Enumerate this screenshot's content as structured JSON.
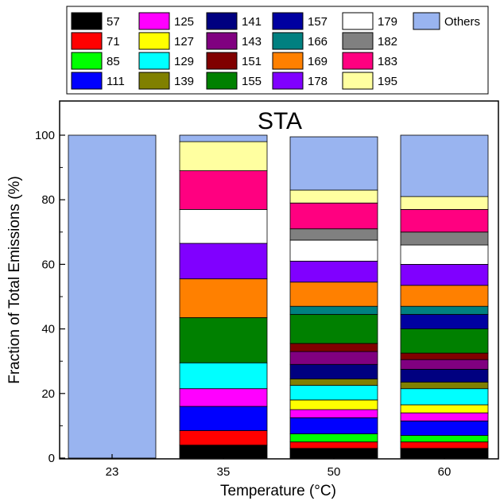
{
  "chart_data": {
    "type": "bar",
    "stacked": true,
    "title": "STA",
    "xlabel": "Temperature (°C)",
    "ylabel": "Fraction of Total Emissions (%)",
    "ylim": [
      0,
      105
    ],
    "yticks": [
      0,
      20,
      40,
      60,
      80,
      100
    ],
    "categories": [
      "23",
      "35",
      "50",
      "60"
    ],
    "legend_position": "top (outside, above plot)",
    "grid": false,
    "series": [
      {
        "name": "57",
        "color": "#000000",
        "values": [
          0,
          4.0,
          3.0,
          3.0
        ]
      },
      {
        "name": "71",
        "color": "#FF0000",
        "values": [
          0,
          4.5,
          2.0,
          2.0
        ]
      },
      {
        "name": "85",
        "color": "#00FF00",
        "values": [
          0,
          0,
          2.5,
          2.0
        ]
      },
      {
        "name": "111",
        "color": "#0000FF",
        "values": [
          0,
          7.5,
          5.0,
          4.5
        ]
      },
      {
        "name": "125",
        "color": "#FF00FF",
        "values": [
          0,
          5.5,
          2.5,
          2.5
        ]
      },
      {
        "name": "127",
        "color": "#FFFF00",
        "values": [
          0,
          0,
          3.0,
          2.5
        ]
      },
      {
        "name": "129",
        "color": "#00FFFF",
        "values": [
          0,
          8.0,
          4.5,
          5.0
        ]
      },
      {
        "name": "139",
        "color": "#808000",
        "values": [
          0,
          0,
          2.0,
          2.0
        ]
      },
      {
        "name": "141",
        "color": "#000080",
        "values": [
          0,
          0,
          4.5,
          4.0
        ]
      },
      {
        "name": "143",
        "color": "#800080",
        "values": [
          0,
          0,
          4.0,
          3.0
        ]
      },
      {
        "name": "151",
        "color": "#800000",
        "values": [
          0,
          0,
          2.5,
          2.0
        ]
      },
      {
        "name": "155",
        "color": "#008000",
        "values": [
          0,
          14.0,
          9.0,
          7.5
        ]
      },
      {
        "name": "157",
        "color": "#0000A0",
        "values": [
          0,
          0,
          0,
          4.5
        ]
      },
      {
        "name": "166",
        "color": "#008080",
        "values": [
          0,
          0,
          2.5,
          2.5
        ]
      },
      {
        "name": "169",
        "color": "#FF8000",
        "values": [
          0,
          12.0,
          7.5,
          6.5
        ]
      },
      {
        "name": "178",
        "color": "#8000FF",
        "values": [
          0,
          11.0,
          6.5,
          6.5
        ]
      },
      {
        "name": "179",
        "color": "#FFFFFF",
        "values": [
          0,
          10.5,
          6.5,
          6.0
        ]
      },
      {
        "name": "182",
        "color": "#808080",
        "values": [
          0,
          0,
          3.5,
          4.0
        ]
      },
      {
        "name": "183",
        "color": "#FF0080",
        "values": [
          0,
          12.0,
          8.0,
          7.0
        ]
      },
      {
        "name": "195",
        "color": "#FFFFA0",
        "values": [
          0,
          9.0,
          4.0,
          4.0
        ]
      },
      {
        "name": "Others",
        "color": "#99B4F0",
        "values": [
          100,
          2.0,
          16.5,
          19.0
        ]
      }
    ]
  },
  "legend_layout_columns": [
    [
      "57",
      "71",
      "85",
      "111"
    ],
    [
      "125",
      "127",
      "129",
      "139"
    ],
    [
      "141",
      "143",
      "151",
      "155"
    ],
    [
      "157",
      "166",
      "169",
      "178"
    ],
    [
      "179",
      "182",
      "183",
      "195"
    ],
    [
      "Others"
    ]
  ]
}
